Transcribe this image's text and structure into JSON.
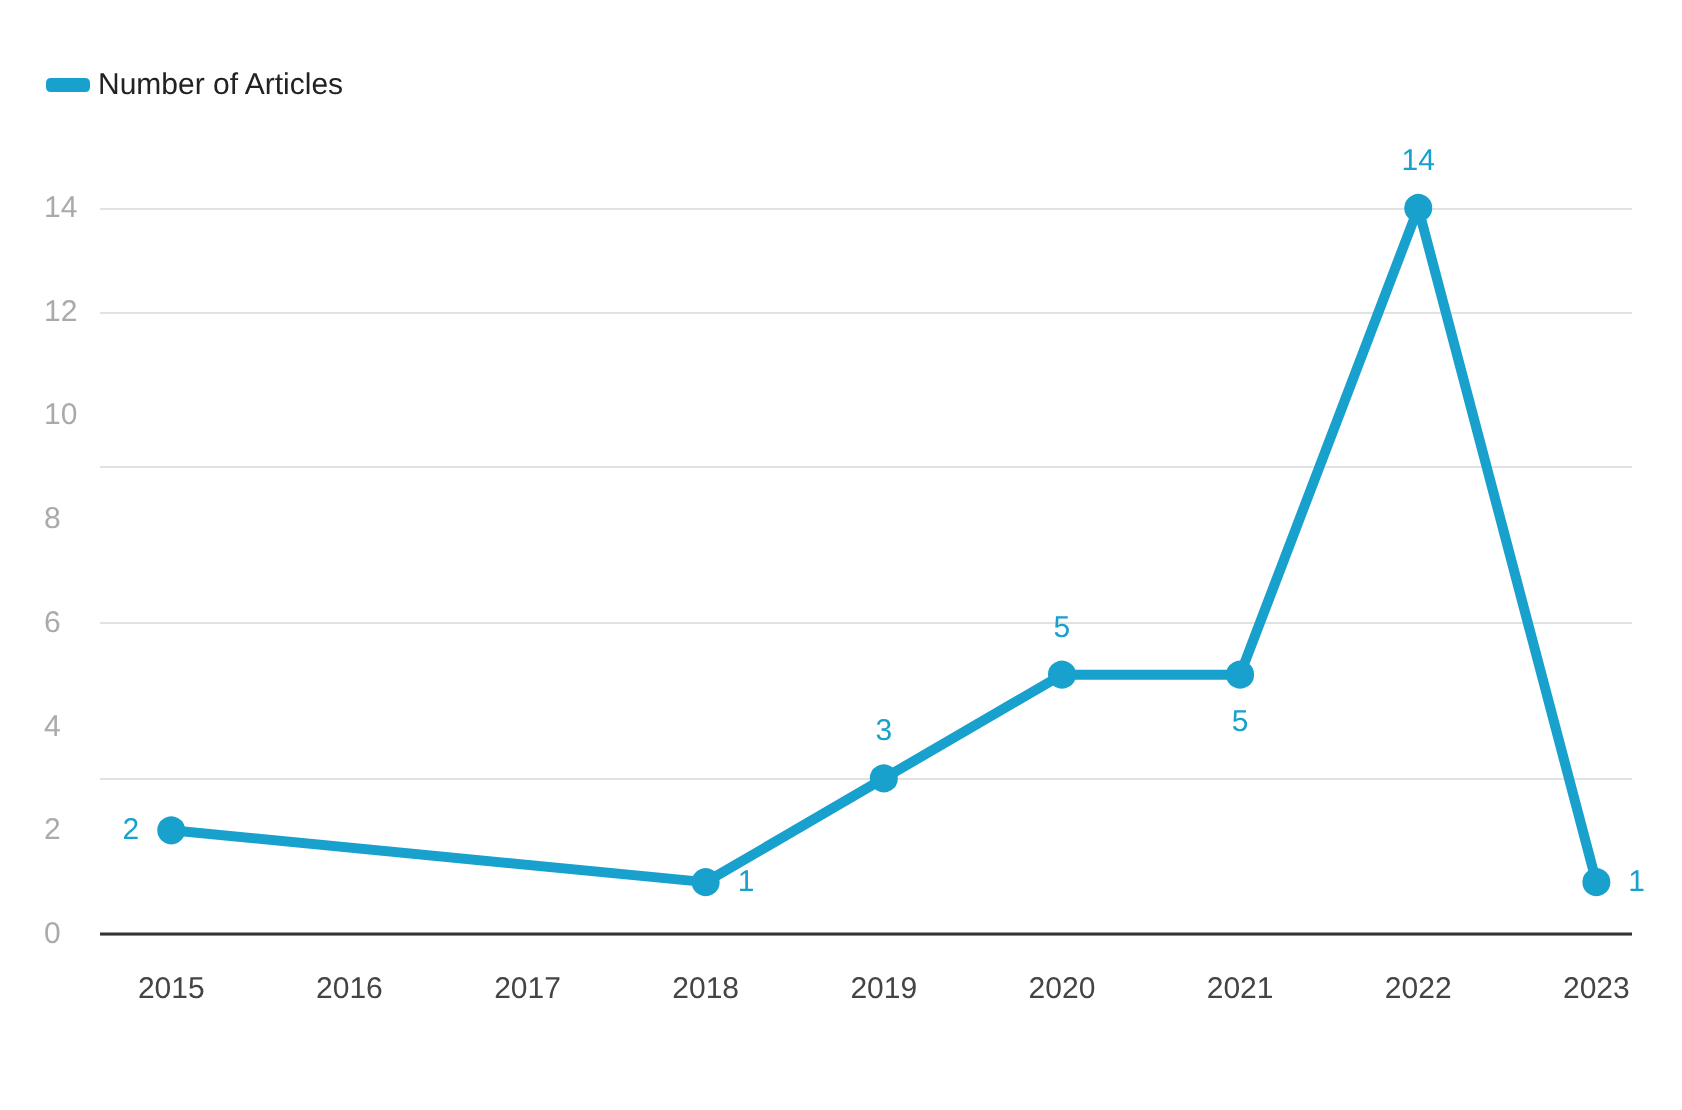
{
  "chart_data": {
    "type": "line",
    "x": [
      2015,
      2018,
      2019,
      2020,
      2021,
      2022,
      2023
    ],
    "series": [
      {
        "name": "Number of Articles",
        "color": "#18a1cd",
        "values": [
          2,
          1,
          3,
          5,
          5,
          14,
          1
        ]
      }
    ],
    "xlim": [
      2014.6,
      2023.2
    ],
    "xticks": [
      2015,
      2016,
      2017,
      2018,
      2019,
      2020,
      2021,
      2022,
      2023
    ],
    "ylim": [
      0,
      14
    ],
    "yticks": [
      0,
      2,
      4,
      6,
      8,
      10,
      12,
      14
    ],
    "grid": "y",
    "legend": "top left",
    "marker": "circle",
    "line_style": "solid",
    "data_labels": true
  }
}
